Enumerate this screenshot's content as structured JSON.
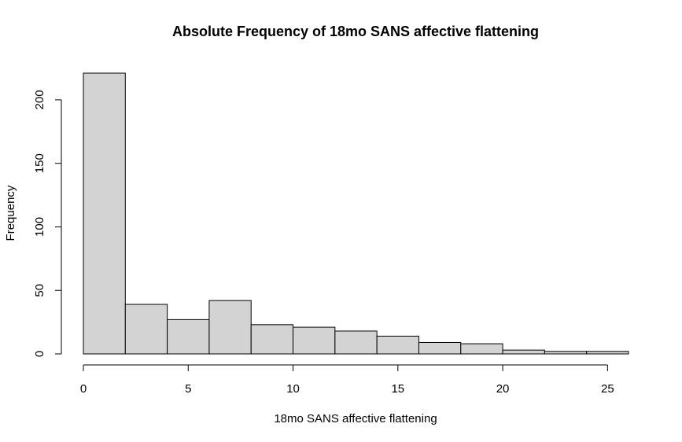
{
  "chart_data": {
    "type": "bar",
    "title": "Absolute Frequency of 18mo SANS affective flattening",
    "xlabel": "18mo SANS affective flattening",
    "ylabel": "Frequency",
    "bin_edges": [
      0,
      2,
      4,
      6,
      8,
      10,
      12,
      14,
      16,
      18,
      20,
      22,
      24,
      26
    ],
    "values": [
      221,
      39,
      27,
      42,
      23,
      21,
      18,
      14,
      9,
      8,
      3,
      2,
      2
    ],
    "xlim": [
      0,
      26
    ],
    "ylim": [
      0,
      221
    ],
    "x_ticks": [
      0,
      5,
      10,
      15,
      20,
      25
    ],
    "y_ticks": [
      0,
      50,
      100,
      150,
      200
    ],
    "grid": false,
    "bar_color": "#d3d3d3",
    "edge_color": "#000000"
  }
}
